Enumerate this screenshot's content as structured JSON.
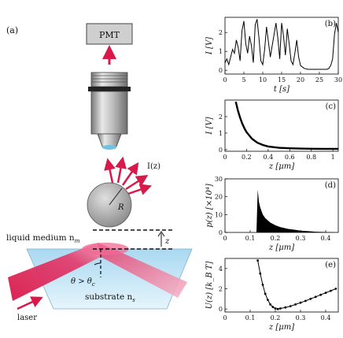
{
  "figure": {
    "schematic": {
      "panel_label": "(a)",
      "pmt_label": "PMT",
      "intensity_label": "I(z)",
      "radius_label": "R",
      "gap_label": "z",
      "medium_label": "liquid medium n",
      "medium_sub": "m",
      "angle_label": "θ > θ",
      "angle_sub": "c",
      "substrate_label": "substrate n",
      "substrate_sub": "s",
      "laser_label": "laser"
    },
    "colors": {
      "beam": "#d8194a",
      "substrate": "#bfe3f5",
      "sphere": "#a9a9a9"
    }
  },
  "chart_data": [
    {
      "panel": "(b)",
      "type": "line",
      "xlabel": "t [s]",
      "ylabel": "I [V]",
      "xlim": [
        0,
        30
      ],
      "ylim": [
        -0.2,
        2.8
      ],
      "xticks": [
        "0",
        "5",
        "10",
        "15",
        "20",
        "25",
        "30"
      ],
      "yticks": [
        "0",
        "1",
        "2"
      ],
      "x": [
        0,
        0.5,
        1,
        1.5,
        2,
        2.5,
        3,
        3.5,
        4,
        4.5,
        5,
        5.5,
        6,
        6.5,
        7,
        7.5,
        8,
        8.5,
        9,
        9.5,
        10,
        10.5,
        11,
        11.5,
        12,
        12.5,
        13,
        13.5,
        14,
        14.5,
        15,
        15.5,
        16,
        16.5,
        17,
        17.5,
        18,
        18.5,
        19,
        19.5,
        20,
        21,
        22,
        23,
        24,
        25,
        26,
        27,
        27.5,
        28,
        28.5,
        29,
        29.5,
        30
      ],
      "values": [
        0.4,
        0.6,
        0.3,
        0.7,
        1.1,
        0.9,
        1.6,
        1.2,
        0.5,
        2.1,
        2.6,
        1.4,
        0.9,
        1.8,
        1.3,
        0.4,
        2.4,
        2.7,
        1.7,
        0.5,
        0.3,
        1.1,
        2.3,
        1.5,
        0.7,
        1.3,
        1.9,
        2.5,
        1.7,
        0.6,
        2.5,
        1.8,
        0.8,
        2.2,
        1.4,
        0.5,
        0.3,
        0.9,
        1.6,
        0.7,
        0.25,
        0.1,
        0.05,
        0.05,
        0.05,
        0.05,
        0.05,
        0.05,
        0.1,
        0.25,
        0.6,
        1.9,
        2.5,
        2.0
      ]
    },
    {
      "panel": "(c)",
      "type": "line",
      "xlabel": "z [µm]",
      "ylabel": "I [V]",
      "xlim": [
        0,
        1.05
      ],
      "ylim": [
        -0.1,
        3.0
      ],
      "xticks": [
        "0",
        "0.2",
        "0.4",
        "0.6",
        "0.8",
        "1"
      ],
      "yticks": [
        "0",
        "1",
        "2"
      ],
      "x": [
        0.1,
        0.12,
        0.14,
        0.16,
        0.18,
        0.2,
        0.25,
        0.3,
        0.35,
        0.4,
        0.5,
        0.6,
        0.7,
        0.8,
        0.9,
        1.0,
        1.05
      ],
      "values": [
        2.9,
        2.35,
        1.93,
        1.58,
        1.29,
        1.06,
        0.66,
        0.42,
        0.28,
        0.19,
        0.11,
        0.08,
        0.06,
        0.055,
        0.05,
        0.05,
        0.05
      ]
    },
    {
      "panel": "(d)",
      "type": "area",
      "xlabel": "z [µm]",
      "ylabel": "p(z) [×10⁴]",
      "xlim": [
        0,
        0.45
      ],
      "ylim": [
        0,
        30
      ],
      "xticks": [
        "0",
        "0.1",
        "0.2",
        "0.3",
        "0.4"
      ],
      "yticks": [
        "0",
        "10",
        "20",
        "30"
      ],
      "x": [
        0.125,
        0.13,
        0.135,
        0.14,
        0.15,
        0.16,
        0.18,
        0.2,
        0.22,
        0.25,
        0.28,
        0.3,
        0.33,
        0.36,
        0.4,
        0.43
      ],
      "values": [
        0,
        24,
        17,
        14,
        10,
        8,
        5.5,
        4,
        3,
        2,
        1.4,
        1,
        0.7,
        0.4,
        0.2,
        0.1
      ]
    },
    {
      "panel": "(e)",
      "type": "scatter",
      "xlabel": "z [µm]",
      "ylabel": "U(z) [k_B T]",
      "xlim": [
        0,
        0.45
      ],
      "ylim": [
        -0.3,
        5
      ],
      "xticks": [
        "0",
        "0.1",
        "0.2",
        "0.3",
        "0.4"
      ],
      "yticks": [
        "0",
        "2",
        "4"
      ],
      "x": [
        0.13,
        0.14,
        0.15,
        0.16,
        0.17,
        0.18,
        0.19,
        0.2,
        0.21,
        0.22,
        0.24,
        0.26,
        0.28,
        0.3,
        0.32,
        0.34,
        0.36,
        0.38,
        0.4,
        0.42,
        0.44
      ],
      "values": [
        4.8,
        3.5,
        2.4,
        1.5,
        0.9,
        0.45,
        0.2,
        0.05,
        0,
        0.05,
        0.15,
        0.28,
        0.45,
        0.62,
        0.8,
        1.0,
        1.2,
        1.4,
        1.6,
        1.8,
        2.0
      ]
    }
  ]
}
